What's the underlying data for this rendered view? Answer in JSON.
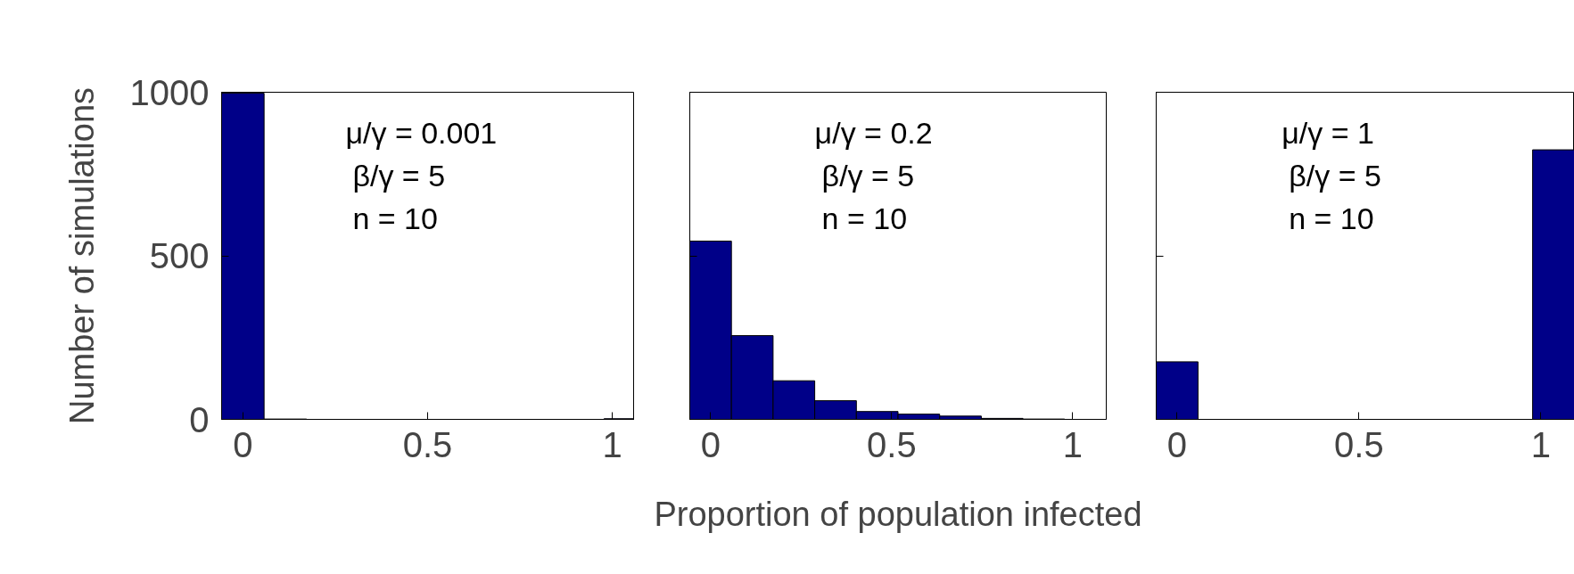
{
  "chart_data": [
    {
      "type": "histogram",
      "ylabel": "Number of simulations",
      "annotations": [
        "μ/γ = 0.001",
        "β/γ = 5",
        "n = 10"
      ],
      "bins": [
        -0.0575,
        0.0575,
        0.1725,
        0.2875,
        0.4025,
        0.5175,
        0.6325,
        0.7475,
        0.8625,
        0.9775,
        1.0925
      ],
      "values": [
        997,
        1,
        0,
        0,
        0,
        0,
        0,
        0,
        0,
        2
      ],
      "color": "#000088",
      "xlim": [
        -0.0575,
        1.06
      ],
      "ylim": [
        0,
        1000
      ],
      "xticks": [
        0,
        0.5,
        1
      ],
      "yticks": [
        0,
        500,
        1000
      ],
      "grid": false
    },
    {
      "type": "histogram",
      "xlabel": "Proportion of population infected",
      "annotations": [
        "μ/γ = 0.2",
        "β/γ = 5",
        "n = 10"
      ],
      "bins": [
        -0.0575,
        0.0575,
        0.1725,
        0.2875,
        0.4025,
        0.5175,
        0.6325,
        0.7475,
        0.8625,
        0.9775,
        1.0925
      ],
      "values": [
        545,
        256,
        118,
        57,
        24,
        16,
        10,
        3,
        1,
        0
      ],
      "color": "#000088",
      "xlim": [
        -0.0575,
        1.0925
      ],
      "ylim": [
        0,
        1000
      ],
      "xticks": [
        0,
        0.5,
        1
      ],
      "yticks": [
        {
          "value": 0,
          "label": null
        },
        {
          "value": 500,
          "label": null
        },
        {
          "value": 1000,
          "label": null
        }
      ],
      "tick_labels": "x",
      "grid": false
    },
    {
      "type": "histogram",
      "annotations": [
        "μ/γ = 1",
        "β/γ = 5",
        "n = 10"
      ],
      "bins": [
        -0.0575,
        0.0575,
        0.1725,
        0.2875,
        0.4025,
        0.5175,
        0.6325,
        0.7475,
        0.8625,
        0.9775,
        1.0925
      ],
      "values": [
        176,
        0,
        0,
        0,
        0,
        0,
        0,
        0,
        0,
        824
      ],
      "color": "#000088",
      "xlim": [
        -0.0575,
        1.0925
      ],
      "ylim": [
        0,
        1000
      ],
      "xticks": [
        0,
        0.5,
        1
      ],
      "yticks": [
        {
          "value": 0,
          "label": null
        },
        {
          "value": 500,
          "label": null
        },
        {
          "value": 1000,
          "label": null
        }
      ],
      "tick_labels": "x",
      "grid": false
    }
  ]
}
